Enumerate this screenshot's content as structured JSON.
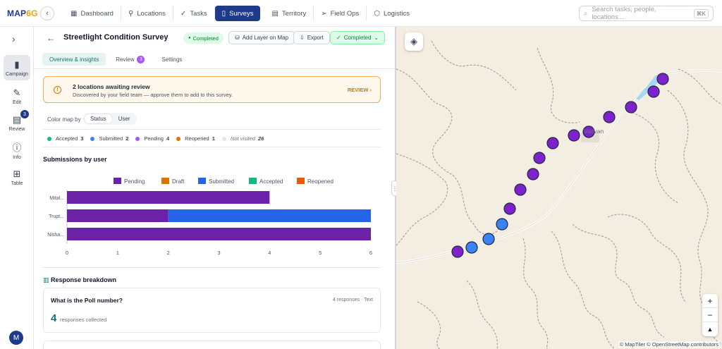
{
  "app": {
    "logo_main": "MAP",
    "logo_accent": "6G"
  },
  "nav": {
    "items": [
      {
        "label": "Dashboard",
        "icon": "dashboard-icon"
      },
      {
        "label": "Locations",
        "icon": "pin-icon"
      },
      {
        "label": "Tasks",
        "icon": "check-icon"
      },
      {
        "label": "Surveys",
        "icon": "clipboard-icon",
        "active": true
      },
      {
        "label": "Territory",
        "icon": "map-icon"
      },
      {
        "label": "Field Ops",
        "icon": "send-icon"
      },
      {
        "label": "Logistics",
        "icon": "box-icon"
      }
    ],
    "search_placeholder": "Search tasks, people, locations...",
    "search_kbd": "⌘K"
  },
  "sidebar": {
    "items": [
      {
        "label": "Campaign",
        "icon": "clipboard-icon",
        "active": true
      },
      {
        "label": "Edit",
        "icon": "edit-icon"
      },
      {
        "label": "Review",
        "icon": "document-icon",
        "badge": "3"
      },
      {
        "label": "Info",
        "icon": "info-icon"
      },
      {
        "label": "Table",
        "icon": "grid-icon"
      }
    ],
    "avatar": "M"
  },
  "survey": {
    "title": "Streetlight Condition Survey",
    "status": "Completed",
    "add_layer": "Add Layer on Map",
    "export": "Export",
    "status_dropdown": "Completed"
  },
  "tabs": [
    {
      "label": "Overview & insights",
      "active": true
    },
    {
      "label": "Review",
      "badge": "3"
    },
    {
      "label": "Settings"
    }
  ],
  "alert": {
    "title": "2 locations awaiting review",
    "description": "Discovered by your field team — approve them to add to this survey.",
    "action": "REVIEW"
  },
  "color_map": {
    "label": "Color map by",
    "options": [
      "Status",
      "User"
    ],
    "selected": "Status"
  },
  "status_legend": [
    {
      "name": "Accepted",
      "count": "3",
      "color": "#10b981"
    },
    {
      "name": "Submitted",
      "count": "2",
      "color": "#3b82f6"
    },
    {
      "name": "Pending",
      "count": "4",
      "color": "#8b5cf6"
    },
    {
      "name": "Reopened",
      "count": "1",
      "color": "#d97706"
    },
    {
      "name": "Not visited",
      "count": "26",
      "color": "#e5e7eb",
      "italic": true
    }
  ],
  "submissions_title": "Submissions by user",
  "chart_data": {
    "type": "bar",
    "orientation": "horizontal",
    "stacked": true,
    "categories": [
      "Mital...",
      "Trupt...",
      "Nisha..."
    ],
    "series": [
      {
        "name": "Pending",
        "color": "#6b21a8",
        "values": [
          4,
          2,
          6
        ]
      },
      {
        "name": "Draft",
        "color": "#d97706",
        "values": [
          0,
          0,
          0
        ]
      },
      {
        "name": "Submitted",
        "color": "#2563eb",
        "values": [
          0,
          4,
          0
        ]
      },
      {
        "name": "Accepted",
        "color": "#10b981",
        "values": [
          0,
          0,
          0
        ]
      },
      {
        "name": "Reopened",
        "color": "#ea580c",
        "values": [
          0,
          0,
          0
        ]
      }
    ],
    "x_ticks": [
      "0",
      "1",
      "2",
      "3",
      "4",
      "5",
      "6"
    ],
    "xlim": [
      0,
      6
    ],
    "legend_position": "top",
    "grid": false
  },
  "response": {
    "section_title": "Response breakdown",
    "question": "What is the Poll number?",
    "meta": "4 responses · Text",
    "count": "4",
    "count_label": "responses collected"
  },
  "map": {
    "town_label": "Vadvan",
    "attribution": "© MapTiler © OpenStreetMap contributors",
    "points": [
      {
        "status": "pending"
      },
      {
        "status": "submitted"
      },
      {
        "status": "submitted"
      },
      {
        "status": "submitted"
      },
      {
        "status": "pending"
      },
      {
        "status": "pending"
      },
      {
        "status": "pending"
      },
      {
        "status": "pending"
      },
      {
        "status": "pending"
      },
      {
        "status": "pending"
      },
      {
        "status": "pending"
      },
      {
        "status": "pending"
      },
      {
        "status": "pending"
      },
      {
        "status": "pending"
      },
      {
        "status": "pending"
      }
    ]
  }
}
